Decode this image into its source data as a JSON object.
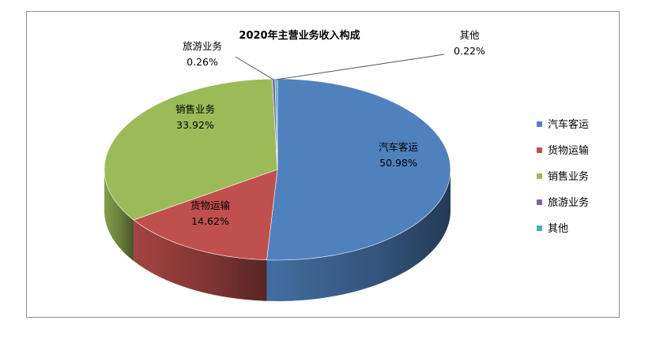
{
  "chart_data": {
    "type": "pie",
    "title": "2020年主营业务收入构成",
    "categories": [
      "汽车客运",
      "货物运输",
      "销售业务",
      "旅游业务",
      "其他"
    ],
    "values": [
      50.98,
      14.62,
      33.92,
      0.26,
      0.22
    ],
    "data_labels": [
      "50.98%",
      "14.62%",
      "33.92%",
      "0.26%",
      "0.22%"
    ],
    "colors": [
      "#4F81BD",
      "#C0504D",
      "#9BBB59",
      "#8064A2",
      "#4BACC6"
    ],
    "dark_colors": [
      "#1f3a5c",
      "#6b1f1d",
      "#5e7a2a",
      "#3f2d5a",
      "#1d6b80"
    ],
    "legend_position": "right",
    "style": "3d-pie"
  }
}
